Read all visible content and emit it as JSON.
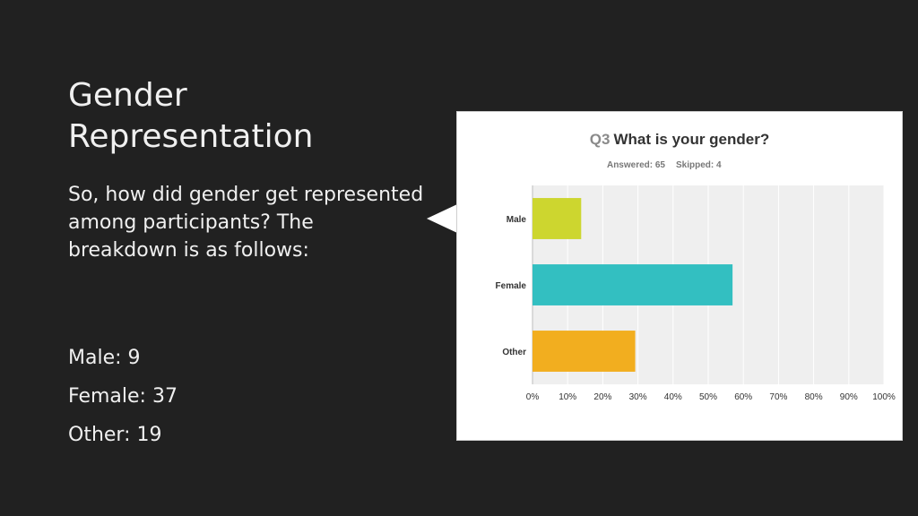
{
  "slide": {
    "title_line1": "Gender",
    "title_line2": "Representation",
    "intro": "So, how did gender get represented among participants? The breakdown is as follows:",
    "stats": [
      {
        "label": "Male: 9"
      },
      {
        "label": "Female: 37"
      },
      {
        "label": "Other: 19"
      }
    ]
  },
  "chart_data": {
    "type": "bar",
    "orientation": "horizontal",
    "question_number": "Q3",
    "title": "What is your gender?",
    "answered": "Answered: 65",
    "skipped": "Skipped: 4",
    "categories": [
      "Male",
      "Female",
      "Other"
    ],
    "values": [
      13.85,
      56.92,
      29.23
    ],
    "colors": [
      "#cdd62f",
      "#33bfc1",
      "#f2ae1f"
    ],
    "xlim": [
      0,
      100
    ],
    "x_ticks": [
      "0%",
      "10%",
      "20%",
      "30%",
      "40%",
      "50%",
      "60%",
      "70%",
      "80%",
      "90%",
      "100%"
    ],
    "grid": true,
    "legend": "none"
  }
}
